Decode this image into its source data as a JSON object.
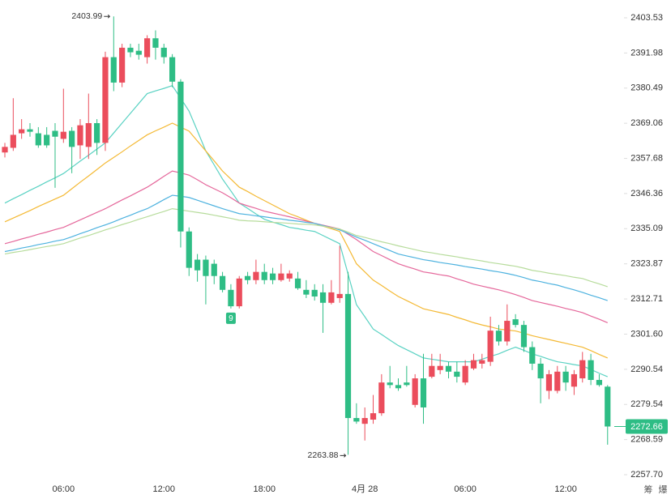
{
  "chart_data": {
    "type": "candlestick",
    "log_scale": true,
    "grid": false,
    "up_color": "#eb4d5c",
    "down_color": "#2ebd85",
    "categories": [
      null,
      null,
      null,
      null,
      null,
      null,
      null,
      "06:00",
      null,
      null,
      null,
      null,
      null,
      null,
      null,
      null,
      null,
      null,
      null,
      "12:00",
      null,
      null,
      null,
      null,
      null,
      null,
      null,
      null,
      null,
      null,
      null,
      "18:00",
      null,
      null,
      null,
      null,
      null,
      null,
      null,
      null,
      null,
      null,
      null,
      "4月 28",
      null,
      null,
      null,
      null,
      null,
      null,
      null,
      null,
      null,
      null,
      null,
      "06:00",
      null,
      null,
      null,
      null,
      null,
      null,
      null,
      null,
      null,
      null,
      null,
      "12:00",
      null,
      null,
      null,
      null,
      null
    ],
    "open": [
      2359.6,
      2361.1,
      2365.8,
      2367.1,
      2365.8,
      2365.3,
      2366.6,
      2364.0,
      2366.6,
      2361.9,
      2361.4,
      2369.1,
      2362.7,
      2390.6,
      2382.3,
      2393.7,
      2392.7,
      2390.6,
      2396.8,
      2393.7,
      2390.6,
      2382.6,
      2334.2,
      2325.2,
      2325.2,
      2323.9,
      2320.0,
      2315.6,
      2310.4,
      2320.0,
      2318.7,
      2321.3,
      2320.8,
      2318.7,
      2319.2,
      2319.2,
      2315.6,
      2315.6,
      2314.8,
      2311.5,
      2313.0,
      2314.3,
      2275.3,
      2273.5,
      2274.8,
      2276.8,
      2286.4,
      2285.6,
      2286.4,
      2279.4,
      2287.7,
      2288.2,
      2290.3,
      2291.6,
      2289.8,
      2286.4,
      2290.8,
      2292.3,
      2292.9,
      2302.7,
      2299.3,
      2306.3,
      2304.5,
      2297.5,
      2292.3,
      2283.8,
      2283.8,
      2289.8,
      2285.1,
      2287.7,
      2293.4,
      2287.2,
      2285.1
    ],
    "high": [
      2362.7,
      2377.2,
      2370.4,
      2369.1,
      2367.8,
      2367.8,
      2369.1,
      2380.3,
      2367.8,
      2370.4,
      2378.7,
      2370.4,
      2392.4,
      2403.99,
      2395.0,
      2395.0,
      2395.0,
      2397.8,
      2399.4,
      2395.0,
      2391.6,
      2383.4,
      2335.5,
      2327.0,
      2326.5,
      2325.2,
      2321.3,
      2317.4,
      2320.0,
      2321.3,
      2325.2,
      2323.9,
      2322.6,
      2323.9,
      2321.8,
      2321.3,
      2318.7,
      2317.4,
      2317.4,
      2318.7,
      2329.6,
      2321.3,
      2279.9,
      2278.6,
      2282.5,
      2289.0,
      2291.6,
      2287.7,
      2291.6,
      2289.0,
      2295.4,
      2295.4,
      2295.4,
      2292.9,
      2292.9,
      2293.4,
      2295.4,
      2295.4,
      2307.1,
      2304.5,
      2311.0,
      2307.9,
      2305.8,
      2299.3,
      2294.1,
      2290.3,
      2291.6,
      2291.6,
      2290.3,
      2296.0,
      2295.4,
      2289.0,
      2285.6
    ],
    "low": [
      2358.0,
      2360.1,
      2364.0,
      2364.7,
      2361.1,
      2361.1,
      2348.2,
      2362.7,
      2352.9,
      2357.5,
      2357.5,
      2358.8,
      2360.1,
      2379.5,
      2380.8,
      2390.6,
      2389.8,
      2388.5,
      2389.8,
      2388.5,
      2380.8,
      2329.1,
      2320.0,
      2318.2,
      2311.0,
      2317.4,
      2314.8,
      2309.7,
      2309.7,
      2317.4,
      2317.4,
      2317.4,
      2317.4,
      2318.2,
      2318.2,
      2315.6,
      2313.0,
      2312.2,
      2302.0,
      2311.0,
      2311.5,
      2263.88,
      2273.5,
      2268.3,
      2273.5,
      2276.0,
      2284.6,
      2283.8,
      2285.1,
      2278.6,
      2273.5,
      2287.7,
      2289.0,
      2287.7,
      2286.4,
      2285.6,
      2290.3,
      2290.8,
      2291.6,
      2298.0,
      2298.0,
      2303.7,
      2296.0,
      2290.3,
      2279.9,
      2281.2,
      2283.0,
      2283.8,
      2282.5,
      2286.4,
      2285.6,
      2285.1,
      2267.0
    ],
    "close": [
      2361.4,
      2365.3,
      2367.1,
      2366.3,
      2361.9,
      2361.9,
      2364.7,
      2366.3,
      2361.4,
      2368.4,
      2369.1,
      2362.7,
      2390.6,
      2382.3,
      2393.7,
      2392.2,
      2391.4,
      2396.8,
      2393.7,
      2390.6,
      2382.6,
      2334.2,
      2322.6,
      2321.8,
      2320.0,
      2320.0,
      2315.6,
      2310.4,
      2319.2,
      2318.7,
      2321.3,
      2318.7,
      2318.7,
      2320.8,
      2320.8,
      2316.1,
      2314.1,
      2313.5,
      2311.5,
      2314.8,
      2314.3,
      2275.3,
      2274.2,
      2275.3,
      2276.8,
      2286.4,
      2285.6,
      2284.6,
      2285.6,
      2287.7,
      2278.6,
      2291.6,
      2291.6,
      2289.8,
      2288.2,
      2291.6,
      2293.4,
      2293.4,
      2302.7,
      2299.3,
      2305.8,
      2304.5,
      2297.5,
      2292.3,
      2287.7,
      2289.0,
      2289.8,
      2286.4,
      2289.0,
      2293.4,
      2287.2,
      2285.6,
      2272.66
    ],
    "lines": [
      {
        "color": "#5ad2c3",
        "values": [
          2343.3,
          2344.7,
          2346.0,
          2347.4,
          2348.7,
          2350.1,
          2351.4,
          2352.8,
          2354.8,
          2356.8,
          2358.7,
          2360.7,
          2362.7,
          2365.9,
          2369.1,
          2372.3,
          2375.5,
          2378.7,
          2379.6,
          2380.4,
          2381.3,
          2377.2,
          2373.0,
          2366.6,
          2360.1,
          2355.6,
          2351.0,
          2347.2,
          2343.3,
          2341.6,
          2339.8,
          2338.1,
          2337.2,
          2336.4,
          2335.5,
          2335.1,
          2334.6,
          2334.2,
          2332.9,
          2331.6,
          2330.3,
          2320.6,
          2310.9,
          2307.1,
          2303.2,
          2301.5,
          2299.7,
          2298.0,
          2296.7,
          2295.4,
          2294.1,
          2293.7,
          2293.3,
          2292.9,
          2292.9,
          2292.9,
          2292.9,
          2293.7,
          2294.6,
          2295.4,
          2296.5,
          2297.5,
          2296.5,
          2295.4,
          2294.6,
          2293.7,
          2292.9,
          2292.5,
          2292.0,
          2291.6,
          2290.5,
          2289.3,
          2288.2
        ]
      },
      {
        "color": "#f4b934",
        "values": [
          2337.3,
          2338.5,
          2339.7,
          2340.9,
          2342.2,
          2343.4,
          2344.6,
          2345.8,
          2347.9,
          2350.0,
          2352.0,
          2354.1,
          2356.2,
          2358.0,
          2359.8,
          2361.7,
          2363.5,
          2365.3,
          2366.6,
          2367.8,
          2369.1,
          2367.8,
          2366.5,
          2363.3,
          2360.1,
          2356.9,
          2353.6,
          2351.0,
          2348.4,
          2347.0,
          2345.5,
          2344.1,
          2342.7,
          2341.3,
          2339.9,
          2338.9,
          2337.8,
          2336.8,
          2335.9,
          2335.1,
          2334.2,
          2329.1,
          2323.9,
          2321.3,
          2318.7,
          2317.0,
          2315.2,
          2313.5,
          2312.2,
          2310.9,
          2309.6,
          2309.0,
          2308.4,
          2307.8,
          2306.9,
          2306.1,
          2305.2,
          2304.5,
          2303.9,
          2303.2,
          2302.9,
          2302.6,
          2301.9,
          2301.1,
          2300.5,
          2299.9,
          2299.3,
          2298.7,
          2298.1,
          2297.5,
          2296.4,
          2295.2,
          2294.1
        ]
      },
      {
        "color": "#e5679b",
        "values": [
          2330.3,
          2331.0,
          2331.8,
          2332.5,
          2333.3,
          2334.0,
          2334.8,
          2335.5,
          2336.7,
          2337.9,
          2339.1,
          2340.3,
          2341.5,
          2342.9,
          2344.3,
          2345.6,
          2347.0,
          2348.4,
          2350.1,
          2351.9,
          2353.6,
          2353.0,
          2352.3,
          2350.8,
          2349.2,
          2347.9,
          2346.6,
          2345.0,
          2343.3,
          2342.4,
          2341.6,
          2340.7,
          2340.1,
          2339.5,
          2338.9,
          2338.2,
          2337.5,
          2336.8,
          2336.2,
          2335.6,
          2335.0,
          2333.3,
          2331.6,
          2329.7,
          2327.8,
          2326.5,
          2325.2,
          2323.9,
          2323.0,
          2322.2,
          2321.3,
          2320.9,
          2320.4,
          2320.0,
          2319.1,
          2318.3,
          2317.4,
          2316.8,
          2316.2,
          2315.6,
          2314.9,
          2314.1,
          2313.2,
          2312.2,
          2311.6,
          2311.0,
          2310.4,
          2309.7,
          2309.1,
          2308.4,
          2307.3,
          2306.3,
          2305.2
        ]
      },
      {
        "color": "#4db2df",
        "values": [
          2327.8,
          2328.3,
          2328.9,
          2329.4,
          2330.0,
          2330.5,
          2331.1,
          2331.6,
          2332.5,
          2333.5,
          2334.4,
          2335.4,
          2336.3,
          2337.3,
          2338.4,
          2339.4,
          2340.5,
          2341.5,
          2342.9,
          2344.4,
          2345.8,
          2345.5,
          2345.1,
          2344.2,
          2343.3,
          2342.4,
          2341.5,
          2340.7,
          2339.9,
          2339.6,
          2339.2,
          2338.9,
          2338.5,
          2338.2,
          2337.8,
          2337.5,
          2337.1,
          2336.8,
          2336.1,
          2335.4,
          2334.7,
          2333.6,
          2332.4,
          2331.4,
          2330.3,
          2329.2,
          2328.1,
          2327.0,
          2326.4,
          2325.8,
          2325.2,
          2324.8,
          2324.3,
          2323.9,
          2323.5,
          2323.0,
          2322.6,
          2322.2,
          2321.7,
          2321.3,
          2320.8,
          2320.2,
          2319.5,
          2318.7,
          2318.2,
          2317.6,
          2317.1,
          2316.3,
          2315.6,
          2314.8,
          2313.9,
          2313.1,
          2312.2
        ]
      },
      {
        "color": "#b7dc9c",
        "values": [
          2327.0,
          2327.5,
          2327.9,
          2328.4,
          2328.9,
          2329.4,
          2329.8,
          2330.3,
          2331.2,
          2332.1,
          2332.9,
          2333.8,
          2334.7,
          2335.5,
          2336.4,
          2337.2,
          2338.1,
          2338.9,
          2339.8,
          2340.6,
          2341.5,
          2341.1,
          2340.7,
          2340.3,
          2339.9,
          2339.4,
          2338.9,
          2338.4,
          2337.8,
          2337.6,
          2337.5,
          2337.3,
          2337.1,
          2337.0,
          2336.8,
          2336.6,
          2336.5,
          2336.3,
          2335.9,
          2335.4,
          2335.0,
          2334.0,
          2332.9,
          2332.3,
          2331.6,
          2330.9,
          2330.3,
          2329.6,
          2329.0,
          2328.4,
          2327.8,
          2327.4,
          2326.9,
          2326.5,
          2326.1,
          2325.6,
          2325.2,
          2324.8,
          2324.3,
          2323.9,
          2323.5,
          2323.1,
          2322.5,
          2321.8,
          2321.4,
          2320.9,
          2320.5,
          2320.1,
          2319.6,
          2319.2,
          2318.3,
          2317.5,
          2316.6
        ]
      }
    ],
    "ylim": [
      2255.45,
      2409.4
    ],
    "yticks": [
      {
        "value": 2257.7,
        "label": "2257.70"
      },
      2268.59,
      2279.54,
      2290.54,
      {
        "value": 2301.6,
        "label": "2301.60"
      },
      2312.71,
      2323.87,
      2335.09,
      2346.36,
      2357.68,
      2369.06,
      2380.49,
      2391.98,
      2403.53
    ],
    "marker_label": "9",
    "toolbar": [
      "筹",
      "爆"
    ]
  }
}
